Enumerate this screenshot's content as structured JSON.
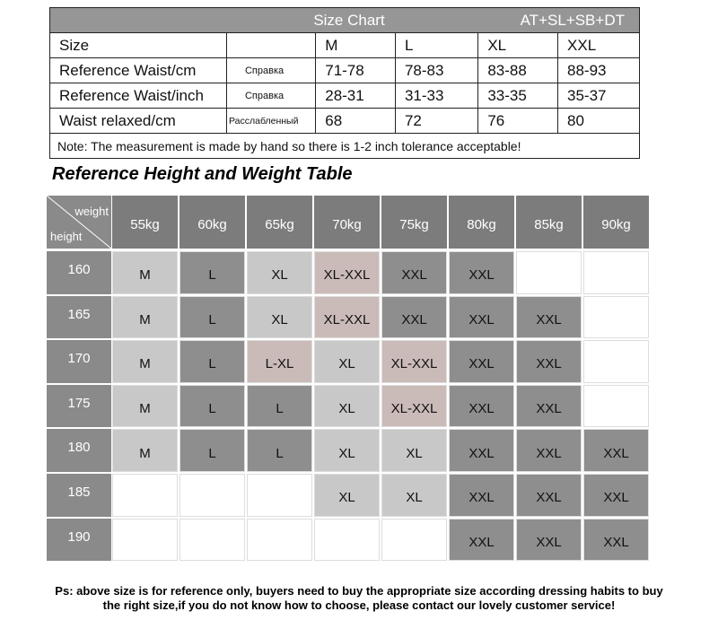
{
  "size_chart": {
    "title": "Size Chart",
    "code": "AT+SL+SB+DT",
    "size_label": "Size",
    "sizes": [
      "M",
      "L",
      "XL",
      "XXL"
    ],
    "rows": [
      {
        "label": "Reference Waist/cm",
        "note": "Справка",
        "values": [
          "71-78",
          "78-83",
          "83-88",
          "88-93"
        ]
      },
      {
        "label": "Reference Waist/inch",
        "note": "Справка",
        "values": [
          "28-31",
          "31-33",
          "33-35",
          "35-37"
        ]
      },
      {
        "label": "Waist relaxed/cm",
        "note": "Расслабленный",
        "values": [
          "68",
          "72",
          "76",
          "80"
        ]
      }
    ],
    "footnote": "Note: The measurement is made by hand so there is 1-2 inch tolerance acceptable!"
  },
  "height_weight": {
    "title": "Reference Height and Weight Table",
    "corner_top": "weight",
    "corner_bottom": "height",
    "weights": [
      "55kg",
      "60kg",
      "65kg",
      "70kg",
      "75kg",
      "80kg",
      "85kg",
      "90kg"
    ],
    "rows": [
      {
        "height": "160",
        "sizes": [
          "M",
          "L",
          "XL",
          "XL-XXL",
          "XXL",
          "XXL",
          null,
          null
        ]
      },
      {
        "height": "165",
        "sizes": [
          "M",
          "L",
          "XL",
          "XL-XXL",
          "XXL",
          "XXL",
          "XXL",
          null
        ]
      },
      {
        "height": "170",
        "sizes": [
          "M",
          "L",
          "L-XL",
          "XL",
          "XL-XXL",
          "XXL",
          "XXL",
          null
        ]
      },
      {
        "height": "175",
        "sizes": [
          "M",
          "L",
          "L",
          "XL",
          "XL-XXL",
          "XXL",
          "XXL",
          null
        ]
      },
      {
        "height": "180",
        "sizes": [
          "M",
          "L",
          "L",
          "XL",
          "XL",
          "XXL",
          "XXL",
          "XXL"
        ]
      },
      {
        "height": "185",
        "sizes": [
          null,
          null,
          null,
          "XL",
          "XL",
          "XXL",
          "XXL",
          "XXL"
        ]
      },
      {
        "height": "190",
        "sizes": [
          null,
          null,
          null,
          null,
          null,
          "XXL",
          "XXL",
          "XXL"
        ]
      }
    ]
  },
  "footer": [
    "Ps: above size is for reference only, buyers need to buy the appropriate size according dressing habits to buy",
    "the right size,if you do not know how to choose, please contact our lovely customer service!"
  ]
}
